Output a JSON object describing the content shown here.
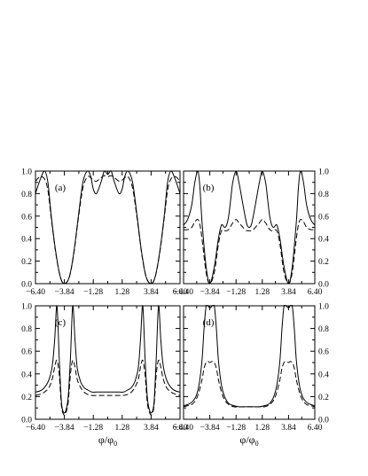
{
  "chart_data": [
    {
      "type": "line",
      "panel_label": "(a)",
      "xlabel": "",
      "ylabel": "",
      "xlim": [
        -6.4,
        6.4
      ],
      "ylim": [
        0.0,
        1.0
      ],
      "x_ticks": [
        -6.4,
        -3.84,
        -1.28,
        1.28,
        3.84,
        6.4
      ],
      "x_tick_labels": [
        "−6.40",
        "−3.84",
        "−1.28",
        "1.28",
        "3.84",
        "6.40"
      ],
      "y_ticks": [
        0.0,
        0.2,
        0.4,
        0.6,
        0.8,
        1.0
      ],
      "y_tick_labels": [
        "0.0",
        "0.2",
        "0.4",
        "0.6",
        "0.8",
        "1.0"
      ],
      "y_axis_side": "left",
      "grid": false,
      "series": [
        {
          "style": "solid",
          "x": [
            -6.4,
            -6.0,
            -5.6,
            -5.3,
            -5.0,
            -4.6,
            -4.2,
            -3.84,
            -3.4,
            -3.0,
            -2.6,
            -2.2,
            -1.8,
            -1.5,
            -1.28,
            -1.0,
            -0.6,
            -0.3,
            0.0,
            0.3,
            0.6,
            1.0,
            1.28,
            1.5,
            1.8,
            2.2,
            2.6,
            3.0,
            3.4,
            3.84,
            4.2,
            4.6,
            5.0,
            5.3,
            5.6,
            6.0,
            6.4
          ],
          "y": [
            0.8,
            0.92,
            1.0,
            0.9,
            0.6,
            0.28,
            0.06,
            0.0,
            0.06,
            0.28,
            0.6,
            0.9,
            1.0,
            0.95,
            0.84,
            0.8,
            0.9,
            1.0,
            0.97,
            1.0,
            0.9,
            0.8,
            0.84,
            0.95,
            1.0,
            0.9,
            0.6,
            0.28,
            0.06,
            0.0,
            0.06,
            0.28,
            0.6,
            0.9,
            1.0,
            0.92,
            0.8
          ]
        },
        {
          "style": "dashed",
          "x": [
            -6.4,
            -6.0,
            -5.6,
            -5.3,
            -5.0,
            -4.6,
            -4.2,
            -3.84,
            -3.4,
            -3.0,
            -2.6,
            -2.2,
            -1.8,
            -1.5,
            -1.28,
            -1.0,
            -0.6,
            -0.3,
            0.0,
            0.3,
            0.6,
            1.0,
            1.28,
            1.5,
            1.8,
            2.2,
            2.6,
            3.0,
            3.4,
            3.84,
            4.2,
            4.6,
            5.0,
            5.3,
            5.6,
            6.0,
            6.4
          ],
          "y": [
            0.91,
            0.95,
            0.93,
            0.83,
            0.58,
            0.27,
            0.06,
            0.0,
            0.06,
            0.27,
            0.58,
            0.85,
            0.95,
            0.94,
            0.92,
            0.91,
            0.94,
            0.96,
            0.95,
            0.96,
            0.94,
            0.91,
            0.92,
            0.94,
            0.95,
            0.85,
            0.58,
            0.27,
            0.06,
            0.0,
            0.06,
            0.27,
            0.58,
            0.83,
            0.93,
            0.95,
            0.91
          ]
        }
      ]
    },
    {
      "type": "line",
      "panel_label": "(b)",
      "xlabel": "",
      "ylabel": "",
      "xlim": [
        -6.4,
        6.4
      ],
      "ylim": [
        0.0,
        1.0
      ],
      "x_ticks": [
        -6.4,
        -3.84,
        -1.28,
        1.28,
        3.84,
        6.4
      ],
      "x_tick_labels": [
        "−6.40",
        "−3.84",
        "−1.28",
        "1.28",
        "3.84",
        "6.40"
      ],
      "y_ticks": [
        0.0,
        0.2,
        0.4,
        0.6,
        0.8,
        1.0
      ],
      "y_tick_labels": [
        "0.0",
        "0.2",
        "0.4",
        "0.6",
        "0.8",
        "1.0"
      ],
      "y_axis_side": "right",
      "grid": false,
      "series": [
        {
          "style": "solid",
          "x": [
            -6.4,
            -6.0,
            -5.6,
            -5.3,
            -5.0,
            -4.8,
            -4.6,
            -4.2,
            -3.84,
            -3.4,
            -3.0,
            -2.7,
            -2.4,
            -2.2,
            -2.0,
            -1.8,
            -1.6,
            -1.28,
            -1.0,
            -0.7,
            -0.4,
            -0.2,
            0.0,
            0.2,
            0.4,
            0.7,
            1.0,
            1.28,
            1.6,
            1.8,
            2.0,
            2.2,
            2.4,
            2.7,
            3.0,
            3.4,
            3.84,
            4.2,
            4.6,
            4.8,
            5.0,
            5.3,
            5.6,
            6.0,
            6.4
          ],
          "y": [
            0.52,
            0.57,
            0.7,
            0.9,
            1.0,
            0.85,
            0.55,
            0.15,
            0.0,
            0.15,
            0.4,
            0.52,
            0.5,
            0.52,
            0.6,
            0.75,
            0.9,
            1.0,
            0.9,
            0.75,
            0.6,
            0.52,
            0.5,
            0.52,
            0.6,
            0.75,
            0.9,
            1.0,
            0.9,
            0.75,
            0.6,
            0.52,
            0.5,
            0.52,
            0.4,
            0.15,
            0.0,
            0.15,
            0.55,
            0.85,
            1.0,
            0.9,
            0.7,
            0.57,
            0.52
          ]
        },
        {
          "style": "dashed",
          "x": [
            -6.4,
            -6.0,
            -5.6,
            -5.3,
            -5.0,
            -4.8,
            -4.6,
            -4.2,
            -3.84,
            -3.4,
            -3.0,
            -2.7,
            -2.4,
            -2.2,
            -2.0,
            -1.8,
            -1.6,
            -1.28,
            -1.0,
            -0.7,
            -0.4,
            -0.2,
            0.0,
            0.2,
            0.4,
            0.7,
            1.0,
            1.28,
            1.6,
            1.8,
            2.0,
            2.2,
            2.4,
            2.7,
            3.0,
            3.4,
            3.84,
            4.2,
            4.6,
            4.8,
            5.0,
            5.3,
            5.6,
            6.0,
            6.4
          ],
          "y": [
            0.48,
            0.48,
            0.5,
            0.55,
            0.57,
            0.52,
            0.4,
            0.1,
            0.0,
            0.1,
            0.35,
            0.47,
            0.47,
            0.47,
            0.48,
            0.51,
            0.54,
            0.57,
            0.54,
            0.51,
            0.48,
            0.47,
            0.47,
            0.47,
            0.48,
            0.51,
            0.54,
            0.57,
            0.54,
            0.51,
            0.48,
            0.47,
            0.47,
            0.47,
            0.35,
            0.1,
            0.0,
            0.1,
            0.4,
            0.52,
            0.57,
            0.55,
            0.5,
            0.48,
            0.48
          ]
        }
      ]
    },
    {
      "type": "line",
      "panel_label": "(c)",
      "xlabel": "φ/φ",
      "xlabel_sub": "0",
      "ylabel": "",
      "xlim": [
        -6.4,
        6.4
      ],
      "ylim": [
        0.0,
        1.0
      ],
      "x_ticks": [
        -6.4,
        -3.84,
        -1.28,
        1.28,
        3.84,
        6.4
      ],
      "x_tick_labels": [
        "−6.40",
        "−3.84",
        "−1.28",
        "1.28",
        "3.84",
        "6.40"
      ],
      "y_ticks": [
        0.0,
        0.2,
        0.4,
        0.6,
        0.8,
        1.0
      ],
      "y_tick_labels": [
        "0.0",
        "0.2",
        "0.4",
        "0.6",
        "0.8",
        "1.0"
      ],
      "y_axis_side": "left",
      "grid": false,
      "series": [
        {
          "style": "solid",
          "x": [
            -6.4,
            -6.0,
            -5.6,
            -5.2,
            -4.9,
            -4.7,
            -4.5,
            -4.3,
            -4.1,
            -3.9,
            -3.7,
            -3.5,
            -3.3,
            -3.1,
            -2.9,
            -2.7,
            -2.4,
            -2.1,
            -1.8,
            -1.4,
            -1.0,
            -0.5,
            0.0,
            0.5,
            1.0,
            1.4,
            1.8,
            2.1,
            2.4,
            2.7,
            2.9,
            3.1,
            3.3,
            3.5,
            3.7,
            3.9,
            4.1,
            4.3,
            4.5,
            4.7,
            4.9,
            5.2,
            5.6,
            6.0,
            6.4
          ],
          "y": [
            0.24,
            0.25,
            0.28,
            0.35,
            0.48,
            0.7,
            1.0,
            0.55,
            0.15,
            0.06,
            0.08,
            0.2,
            0.55,
            1.0,
            0.7,
            0.45,
            0.33,
            0.28,
            0.26,
            0.24,
            0.24,
            0.24,
            0.24,
            0.24,
            0.24,
            0.24,
            0.26,
            0.28,
            0.33,
            0.45,
            0.7,
            1.0,
            0.55,
            0.2,
            0.08,
            0.06,
            0.15,
            0.55,
            1.0,
            0.7,
            0.48,
            0.35,
            0.28,
            0.25,
            0.24
          ]
        },
        {
          "style": "dashed",
          "x": [
            -6.4,
            -6.0,
            -5.6,
            -5.2,
            -4.9,
            -4.7,
            -4.5,
            -4.3,
            -4.1,
            -3.9,
            -3.7,
            -3.5,
            -3.3,
            -3.1,
            -2.9,
            -2.7,
            -2.4,
            -2.1,
            -1.8,
            -1.4,
            -1.0,
            -0.5,
            0.0,
            0.5,
            1.0,
            1.4,
            1.8,
            2.1,
            2.4,
            2.7,
            2.9,
            3.1,
            3.3,
            3.5,
            3.7,
            3.9,
            4.1,
            4.3,
            4.5,
            4.7,
            4.9,
            5.2,
            5.6,
            6.0,
            6.4
          ],
          "y": [
            0.21,
            0.22,
            0.24,
            0.28,
            0.36,
            0.46,
            0.52,
            0.4,
            0.12,
            0.04,
            0.06,
            0.15,
            0.4,
            0.52,
            0.46,
            0.35,
            0.28,
            0.24,
            0.22,
            0.21,
            0.21,
            0.21,
            0.21,
            0.21,
            0.21,
            0.21,
            0.22,
            0.24,
            0.28,
            0.35,
            0.46,
            0.52,
            0.4,
            0.15,
            0.06,
            0.04,
            0.12,
            0.4,
            0.52,
            0.46,
            0.36,
            0.28,
            0.24,
            0.22,
            0.21
          ]
        }
      ]
    },
    {
      "type": "line",
      "panel_label": "(d)",
      "xlabel": "φ/φ",
      "xlabel_sub": "0",
      "ylabel": "",
      "xlim": [
        -6.4,
        6.4
      ],
      "ylim": [
        0.0,
        1.0
      ],
      "x_ticks": [
        -6.4,
        -3.84,
        -1.28,
        1.28,
        3.84,
        6.4
      ],
      "x_tick_labels": [
        "−6.40",
        "−3.84",
        "−1.28",
        "1.28",
        "3.84",
        "6.40"
      ],
      "y_ticks": [
        0.0,
        0.2,
        0.4,
        0.6,
        0.8,
        1.0
      ],
      "y_tick_labels": [
        "0.0",
        "0.2",
        "0.4",
        "0.6",
        "0.8",
        "1.0"
      ],
      "y_axis_side": "right",
      "grid": false,
      "series": [
        {
          "style": "solid",
          "x": [
            -6.4,
            -6.0,
            -5.6,
            -5.2,
            -4.9,
            -4.6,
            -4.4,
            -4.2,
            -4.0,
            -3.84,
            -3.6,
            -3.4,
            -3.2,
            -3.0,
            -2.7,
            -2.4,
            -2.0,
            -1.5,
            -1.0,
            -0.5,
            0.0,
            0.5,
            1.0,
            1.5,
            2.0,
            2.4,
            2.7,
            3.0,
            3.2,
            3.4,
            3.6,
            3.84,
            4.0,
            4.2,
            4.4,
            4.6,
            4.9,
            5.2,
            5.6,
            6.0,
            6.4
          ],
          "y": [
            0.12,
            0.13,
            0.15,
            0.2,
            0.3,
            0.52,
            0.8,
            1.0,
            1.0,
            0.98,
            1.0,
            1.0,
            0.8,
            0.52,
            0.3,
            0.2,
            0.14,
            0.12,
            0.11,
            0.11,
            0.11,
            0.11,
            0.11,
            0.12,
            0.14,
            0.2,
            0.3,
            0.52,
            0.8,
            1.0,
            1.0,
            0.98,
            1.0,
            1.0,
            0.8,
            0.52,
            0.3,
            0.2,
            0.15,
            0.13,
            0.12
          ]
        },
        {
          "style": "dashed",
          "x": [
            -6.4,
            -6.0,
            -5.6,
            -5.2,
            -4.9,
            -4.6,
            -4.4,
            -4.2,
            -4.0,
            -3.84,
            -3.6,
            -3.4,
            -3.2,
            -3.0,
            -2.7,
            -2.4,
            -2.0,
            -1.5,
            -1.0,
            -0.5,
            0.0,
            0.5,
            1.0,
            1.5,
            2.0,
            2.4,
            2.7,
            3.0,
            3.2,
            3.4,
            3.6,
            3.84,
            4.0,
            4.2,
            4.4,
            4.6,
            4.9,
            5.2,
            5.6,
            6.0,
            6.4
          ],
          "y": [
            0.11,
            0.12,
            0.13,
            0.17,
            0.24,
            0.35,
            0.45,
            0.5,
            0.51,
            0.5,
            0.51,
            0.5,
            0.45,
            0.35,
            0.24,
            0.17,
            0.13,
            0.11,
            0.11,
            0.11,
            0.11,
            0.11,
            0.11,
            0.11,
            0.13,
            0.17,
            0.24,
            0.35,
            0.45,
            0.5,
            0.51,
            0.5,
            0.51,
            0.5,
            0.45,
            0.35,
            0.24,
            0.17,
            0.13,
            0.12,
            0.11
          ]
        }
      ]
    }
  ]
}
